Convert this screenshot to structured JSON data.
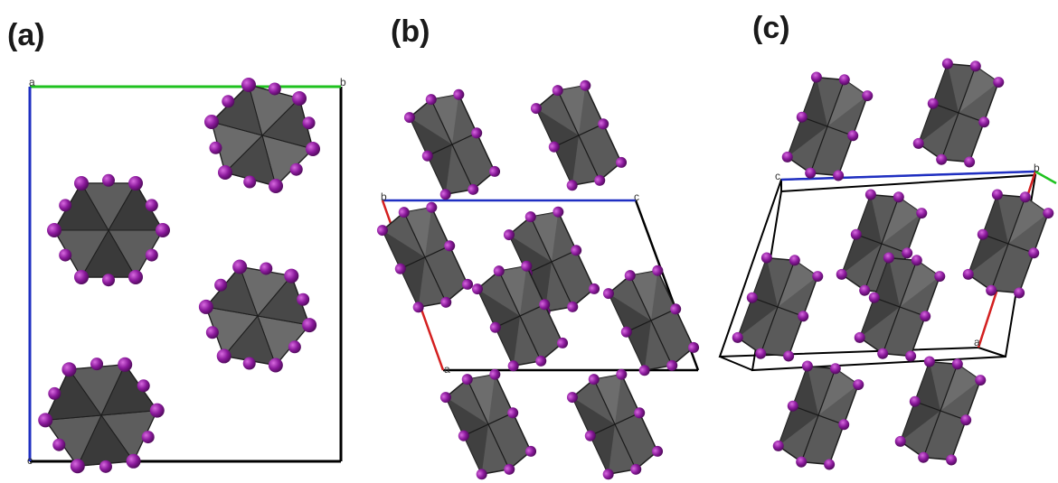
{
  "panels": [
    {
      "label": "(a)",
      "axis_labels": {
        "a": "a",
        "b": "b",
        "c": "c"
      }
    },
    {
      "label": "(b)",
      "axis_labels": {
        "a": "a",
        "b": "b",
        "c": "c"
      }
    },
    {
      "label": "(c)",
      "axis_labels": {
        "a": "a",
        "b": "b",
        "c": "c"
      }
    }
  ],
  "colors": {
    "atom": "#8b1a9c",
    "atom_highlight": "#c040c8",
    "polyhedron_dark": "#3a3a3a",
    "polyhedron_mid": "#5a5a5a",
    "polyhedron_light": "#7a7a7a",
    "cell_edge": "#000000",
    "axis_a": "#d42020",
    "axis_b": "#1fc21f",
    "axis_c": "#1f2fc2"
  }
}
